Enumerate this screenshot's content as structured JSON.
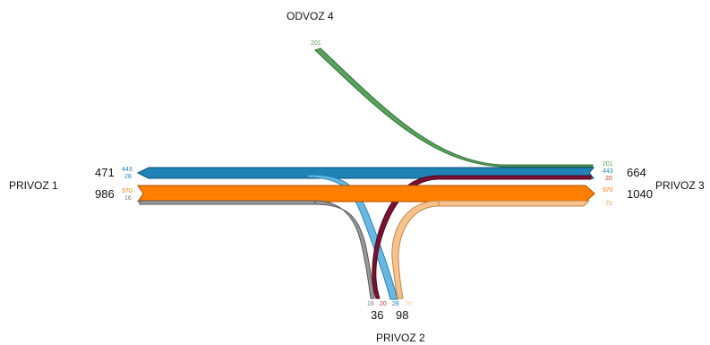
{
  "colors": {
    "green": "#5aa35e",
    "blue": "#1f83b8",
    "orange": "#ff7f00",
    "gray": "#777777",
    "maroon": "#7b1030",
    "peach": "#f6c28d",
    "red": "#c0392b"
  },
  "nodes": {
    "privoz1": {
      "label": "PRIVOZ 1",
      "total_out": "471",
      "total_in": "986"
    },
    "privoz2": {
      "label": "PRIVOZ 2",
      "total_left": "36",
      "total_right": "98"
    },
    "privoz3": {
      "label": "PRIVOZ 3",
      "total_top": "664",
      "total_bottom": "1040"
    },
    "odvoz4": {
      "label": "ODVOZ 4"
    }
  },
  "flows": {
    "green_from_odvoz4": "201",
    "green_at_privoz3": "201",
    "blue_at_privoz3": "443",
    "red_at_privoz3": "20",
    "blue_at_privoz1": "443",
    "blue2_at_privoz1": "28",
    "orange_at_privoz1": "970",
    "gray_at_privoz1": "16",
    "orange_at_privoz3": "970",
    "peach_at_privoz3": "70",
    "gray_at_privoz2": "16",
    "maroon_at_privoz2": "20",
    "blue_at_privoz2": "28",
    "peach_at_privoz2": "70"
  }
}
